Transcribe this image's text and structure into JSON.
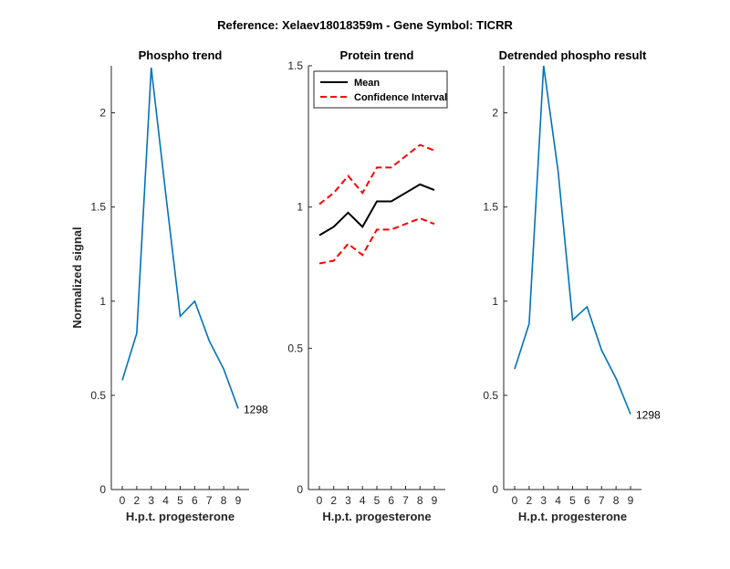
{
  "figure": {
    "suptitle": "Reference:  Xelaev18018359m - Gene Symbol:  TICRR"
  },
  "chart_data": [
    {
      "type": "line",
      "title": "Phospho trend",
      "xlabel": "H.p.t. progesterone",
      "ylabel": "Normalized signal",
      "categories": [
        "0",
        "2",
        "3",
        "4",
        "5",
        "6",
        "7",
        "8",
        "9"
      ],
      "ylim": [
        0,
        2.25
      ],
      "yticks": [
        0,
        0.5,
        1,
        1.5,
        2
      ],
      "ytick_labels": [
        "0",
        "0.5",
        "1",
        "1.5",
        "2"
      ],
      "series": [
        {
          "values": [
            0.58,
            0.83,
            2.24,
            1.57,
            0.92,
            1.0,
            0.79,
            0.64,
            0.43
          ],
          "color": "#0072BD",
          "style": "solid"
        }
      ],
      "annotation": "1298"
    },
    {
      "type": "line",
      "title": "Protein trend",
      "xlabel": "H.p.t. progesterone",
      "ylabel": "",
      "categories": [
        "0",
        "2",
        "3",
        "4",
        "5",
        "6",
        "7",
        "8",
        "9"
      ],
      "ylim": [
        0,
        1.5
      ],
      "yticks": [
        0,
        0.5,
        1,
        1.5
      ],
      "ytick_labels": [
        "0",
        "0.5",
        "1",
        "1.5"
      ],
      "legend": {
        "placement": "top-left",
        "entries": [
          "Mean",
          "Confidence Interval"
        ]
      },
      "series": [
        {
          "name": "Mean",
          "values": [
            0.9,
            0.93,
            0.98,
            0.93,
            1.02,
            1.02,
            1.05,
            1.08,
            1.06
          ],
          "color": "#000000",
          "style": "solid"
        },
        {
          "name": "Confidence Interval",
          "values": [
            1.01,
            1.05,
            1.11,
            1.05,
            1.14,
            1.14,
            1.18,
            1.22,
            1.2
          ],
          "color": "#FF0000",
          "style": "dashed"
        },
        {
          "name": "Confidence Interval",
          "values": [
            0.8,
            0.81,
            0.87,
            0.83,
            0.92,
            0.92,
            0.94,
            0.96,
            0.94
          ],
          "color": "#FF0000",
          "style": "dashed"
        }
      ]
    },
    {
      "type": "line",
      "title": "Detrended phospho result",
      "xlabel": "H.p.t. progesterone",
      "ylabel": "",
      "categories": [
        "0",
        "2",
        "3",
        "4",
        "5",
        "6",
        "7",
        "8",
        "9"
      ],
      "ylim": [
        0,
        2.25
      ],
      "yticks": [
        0,
        0.5,
        1,
        1.5,
        2
      ],
      "ytick_labels": [
        "0",
        "0.5",
        "1",
        "1.5",
        "2"
      ],
      "series": [
        {
          "values": [
            0.64,
            0.88,
            2.25,
            1.69,
            0.9,
            0.97,
            0.74,
            0.59,
            0.4
          ],
          "color": "#0072BD",
          "style": "solid"
        }
      ],
      "annotation": "1298"
    }
  ]
}
